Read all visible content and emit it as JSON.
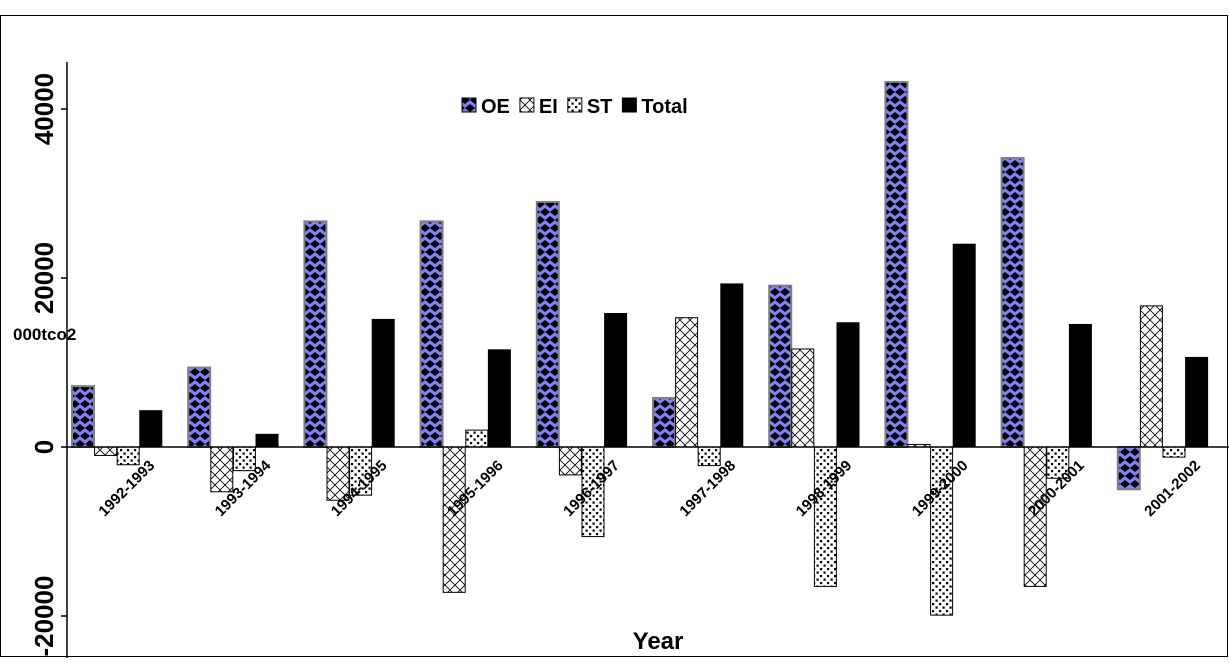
{
  "chart_data": {
    "type": "bar",
    "title": "",
    "xlabel": "Year",
    "ylabel": "000tco2",
    "categories": [
      "1992-1993",
      "1993-1994",
      "1994-1995",
      "1995-1996",
      "1996-1997",
      "1997-1998",
      "1998-1999",
      "1999-2000",
      "2000-2001",
      "2001-2002"
    ],
    "series": [
      {
        "name": "OE",
        "values": [
          7200,
          9400,
          26700,
          26700,
          29000,
          5800,
          19100,
          43200,
          34200,
          -5000
        ]
      },
      {
        "name": "EI",
        "values": [
          -1000,
          -5300,
          -6300,
          -17200,
          -3300,
          15300,
          11600,
          300,
          -16500,
          16700
        ]
      },
      {
        "name": "ST",
        "values": [
          -2100,
          -2800,
          -5700,
          2000,
          -10600,
          -2200,
          -16500,
          -19900,
          -3700,
          -1200
        ]
      },
      {
        "name": "Total",
        "values": [
          4300,
          1500,
          15100,
          11500,
          15800,
          19300,
          14700,
          24000,
          14500,
          10600
        ]
      }
    ],
    "yticks": [
      -20000,
      0,
      20000,
      40000
    ],
    "ytick_labels": [
      "-20000",
      "0",
      "20000",
      "40000"
    ],
    "ylim": [
      -25000,
      45000
    ],
    "grid": false,
    "legend_position": "top-center",
    "colors": {
      "OE": "#8080ff",
      "OE_pattern": "#000000",
      "EI": "#ffffff",
      "ST": "#ffffff",
      "Total": "#000000"
    }
  }
}
